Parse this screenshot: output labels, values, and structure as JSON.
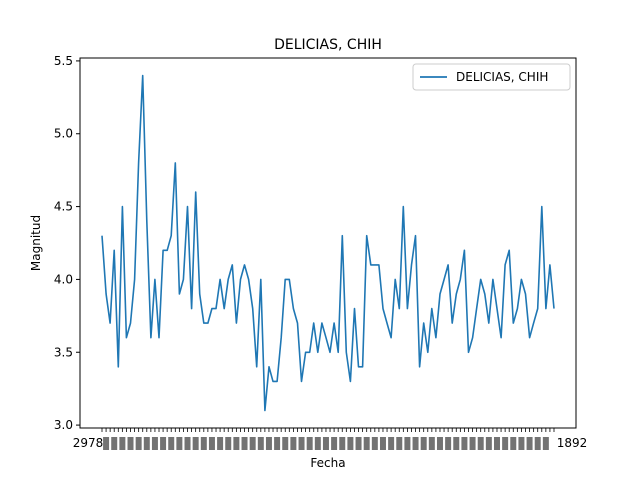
{
  "chart_data": {
    "type": "line",
    "title": "DELICIAS, CHIH",
    "xlabel": "Fecha",
    "ylabel": "Magnitud",
    "ylim": [
      2.98,
      5.52
    ],
    "yticks": [
      "3.0",
      "3.5",
      "4.0",
      "4.5",
      "5.0",
      "5.5"
    ],
    "yticks_values": [
      3.0,
      3.5,
      4.0,
      4.5,
      5.0,
      5.5
    ],
    "xtick_labels_first": "2978",
    "xtick_labels_last": "1892",
    "legend_position": "upper right",
    "grid": false,
    "series": [
      {
        "name": "DELICIAS, CHIH",
        "color": "#1f77b4",
        "x": [
          0,
          1,
          2,
          3,
          4,
          5,
          6,
          7,
          8,
          9,
          10,
          11,
          12,
          13,
          14,
          15,
          16,
          17,
          18,
          19,
          20,
          21,
          22,
          23,
          24,
          25,
          26,
          27,
          28,
          29,
          30,
          31,
          32,
          33,
          34,
          35,
          36,
          37,
          38,
          39,
          40,
          41,
          42,
          43,
          44,
          45,
          46,
          47,
          48,
          49,
          50,
          51,
          52,
          53,
          54,
          55,
          56,
          57,
          58,
          59,
          60,
          61,
          62,
          63,
          64,
          65,
          66,
          67,
          68,
          69,
          70,
          71,
          72,
          73,
          74,
          75,
          76,
          77,
          78,
          79,
          80,
          81,
          82,
          83,
          84,
          85,
          86,
          87,
          88,
          89,
          90,
          91,
          92,
          93,
          94,
          95,
          96,
          97,
          98,
          99,
          100,
          101,
          102,
          103,
          104,
          105,
          106,
          107,
          108,
          109,
          110,
          111
        ],
        "values": [
          4.3,
          3.9,
          3.7,
          4.2,
          3.4,
          4.5,
          3.6,
          3.7,
          4.0,
          4.8,
          5.4,
          4.4,
          3.6,
          4.0,
          3.6,
          4.2,
          4.2,
          4.3,
          4.8,
          3.9,
          4.0,
          4.5,
          3.8,
          4.6,
          3.9,
          3.7,
          3.7,
          3.8,
          3.8,
          4.0,
          3.8,
          4.0,
          4.1,
          3.7,
          4.0,
          4.1,
          4.0,
          3.8,
          3.4,
          4.0,
          3.1,
          3.4,
          3.3,
          3.3,
          3.6,
          4.0,
          4.0,
          3.8,
          3.7,
          3.3,
          3.5,
          3.5,
          3.7,
          3.5,
          3.7,
          3.6,
          3.5,
          3.7,
          3.5,
          4.3,
          3.5,
          3.3,
          3.8,
          3.4,
          3.4,
          4.3,
          4.1,
          4.1,
          4.1,
          3.8,
          3.7,
          3.6,
          4.0,
          3.8,
          4.5,
          3.8,
          4.1,
          4.3,
          3.4,
          3.7,
          3.5,
          3.8,
          3.6,
          3.9,
          4.0,
          4.1,
          3.7,
          3.9,
          4.0,
          4.2,
          3.5,
          3.6,
          3.8,
          4.0,
          3.9,
          3.7,
          4.0,
          3.8,
          3.6,
          4.1,
          4.2,
          3.7,
          3.8,
          4.0,
          3.9,
          3.6,
          3.7,
          3.8,
          4.5,
          3.8,
          4.1,
          3.8
        ]
      }
    ]
  }
}
